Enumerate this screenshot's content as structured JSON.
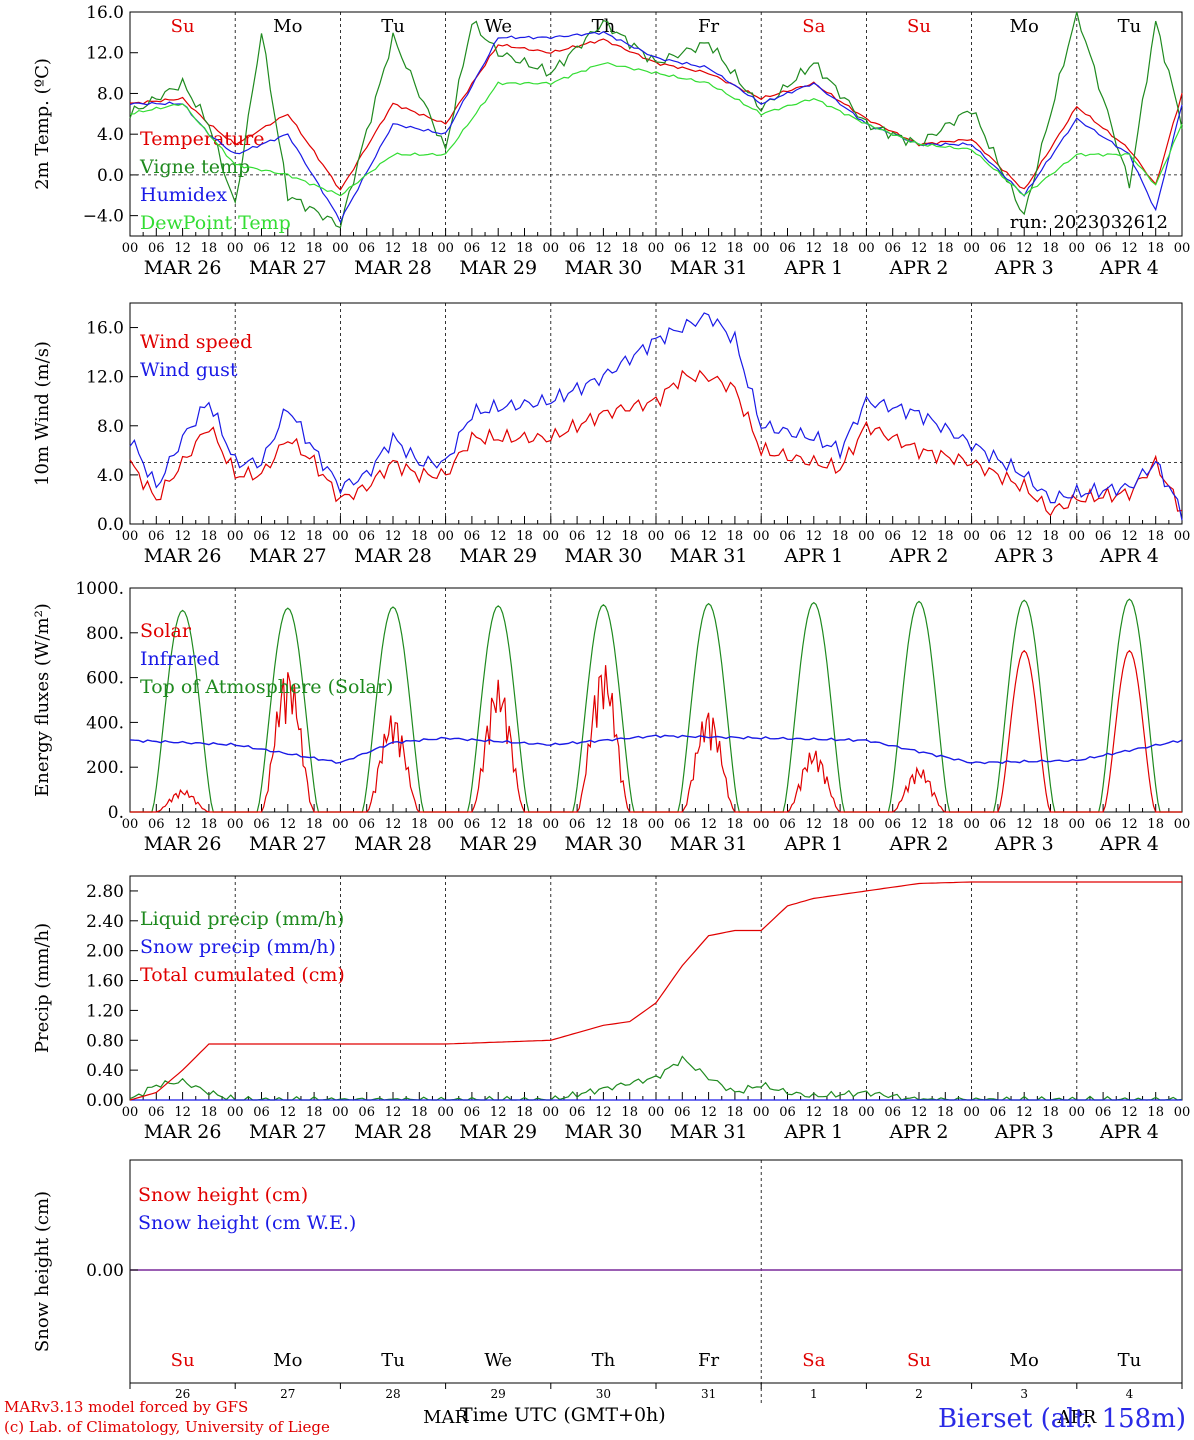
{
  "colors": {
    "red": "#e00000",
    "green": "#1f8a1f",
    "blue": "#1a1ae6",
    "lime": "#33dd33",
    "purple": "#7a2a9a"
  },
  "chart_data": [
    {
      "type": "line",
      "ylabel": "2m Temp. (ºC)",
      "ylim": [
        -6,
        16
      ],
      "yticks": [
        -4,
        0,
        4,
        8,
        12,
        16
      ],
      "ytick_labels": [
        "−4.0",
        "0.0",
        "4.0",
        "8.0",
        "12.0",
        "16.0"
      ],
      "run_label": "run: 2023032612",
      "day_labels": [
        "Su",
        "Mo",
        "Tu",
        "We",
        "Th",
        "Fr",
        "Sa",
        "Su",
        "Mo",
        "Tu"
      ],
      "day_label_colors": [
        "red",
        "black",
        "black",
        "black",
        "black",
        "black",
        "red",
        "red",
        "black",
        "black"
      ],
      "hour_ticks": [
        "00",
        "06",
        "12",
        "18"
      ],
      "date_labels": [
        "MAR 26",
        "MAR 27",
        "MAR 28",
        "MAR 29",
        "MAR 30",
        "MAR 31",
        "APR  1",
        "APR  2",
        "APR  3",
        "APR  4"
      ],
      "zero_line": 0,
      "series": [
        {
          "name": "Temperature",
          "color": "red",
          "x_hours": [
            0,
            12,
            18,
            24,
            36,
            48,
            60,
            72,
            84,
            96,
            108,
            120,
            132,
            144,
            156,
            168,
            180,
            192,
            204,
            216,
            228,
            234,
            240
          ],
          "values": [
            7,
            7.5,
            5,
            3,
            6,
            -1.5,
            7,
            5,
            12.8,
            12,
            13.3,
            11,
            10,
            7.5,
            9,
            5.5,
            3,
            3.5,
            -1.5,
            6.7,
            2.5,
            -1,
            8
          ]
        },
        {
          "name": "Vigne temp",
          "color": "green",
          "x_hours": [
            0,
            12,
            18,
            24,
            30,
            36,
            48,
            60,
            72,
            78,
            84,
            96,
            108,
            120,
            132,
            144,
            156,
            168,
            180,
            192,
            204,
            216,
            228,
            234,
            240
          ],
          "values": [
            6,
            9,
            5,
            -3,
            14,
            -2,
            -5,
            13.5,
            2.5,
            15,
            12,
            10,
            15,
            11,
            13,
            6.5,
            11,
            5,
            3,
            6.5,
            -4,
            16,
            -1,
            15,
            5
          ]
        },
        {
          "name": "Humidex",
          "color": "blue",
          "x_hours": [
            0,
            12,
            18,
            24,
            36,
            48,
            60,
            72,
            84,
            96,
            108,
            120,
            132,
            144,
            156,
            168,
            180,
            192,
            204,
            216,
            228,
            234,
            240
          ],
          "values": [
            7,
            7,
            4,
            2,
            4,
            -4.5,
            5,
            4,
            13.5,
            13.5,
            14,
            11.5,
            10.5,
            7,
            9,
            5,
            3,
            3,
            -2,
            5.5,
            2,
            -3.5,
            7
          ]
        },
        {
          "name": "DewPoint Temp",
          "color": "lime",
          "x_hours": [
            0,
            12,
            18,
            24,
            36,
            48,
            60,
            72,
            84,
            96,
            108,
            120,
            132,
            144,
            156,
            168,
            180,
            192,
            204,
            216,
            228,
            234,
            240
          ],
          "values": [
            6,
            7,
            4,
            1,
            0,
            -2,
            2,
            2,
            9,
            9,
            11,
            10,
            9,
            6,
            7.5,
            5,
            3,
            2.5,
            -2,
            2,
            2,
            -1,
            5
          ]
        }
      ]
    },
    {
      "type": "line",
      "ylabel": "10m Wind (m/s)",
      "ylim": [
        0,
        18
      ],
      "yticks": [
        0,
        4,
        8,
        12,
        16
      ],
      "ytick_labels": [
        "0.0",
        "4.0",
        "8.0",
        "12.0",
        "16.0"
      ],
      "date_labels": [
        "MAR 26",
        "MAR 27",
        "MAR 28",
        "MAR 29",
        "MAR 30",
        "MAR 31",
        "APR  1",
        "APR  2",
        "APR  3",
        "APR  4"
      ],
      "hour_ticks": [
        "00",
        "06",
        "12",
        "18"
      ],
      "zero_line": 5,
      "series": [
        {
          "name": "Wind speed",
          "color": "red",
          "x_hours": [
            0,
            6,
            12,
            18,
            24,
            30,
            36,
            42,
            48,
            54,
            60,
            66,
            72,
            78,
            84,
            96,
            108,
            120,
            126,
            132,
            138,
            144,
            156,
            162,
            168,
            180,
            192,
            204,
            210,
            216,
            228,
            234,
            240
          ],
          "values": [
            5,
            2,
            5,
            8,
            4,
            4,
            7,
            5,
            2,
            3,
            5,
            4,
            4,
            7,
            7,
            7,
            9,
            10,
            12,
            12,
            11,
            6,
            5,
            4.5,
            8,
            6,
            5,
            3,
            1,
            2,
            2.5,
            5,
            1
          ]
        },
        {
          "name": "Wind gust",
          "color": "blue",
          "x_hours": [
            0,
            6,
            12,
            18,
            24,
            30,
            36,
            42,
            48,
            54,
            60,
            66,
            72,
            78,
            84,
            96,
            108,
            120,
            126,
            132,
            138,
            144,
            156,
            162,
            168,
            180,
            192,
            204,
            210,
            216,
            228,
            234,
            240
          ],
          "values": [
            7,
            3,
            7,
            10,
            5,
            5,
            9.5,
            6,
            3,
            4,
            7,
            5,
            5,
            9,
            9.5,
            10,
            12,
            15,
            16,
            17,
            15,
            8,
            7,
            6,
            10,
            9,
            6.5,
            4,
            2,
            2.5,
            3,
            5,
            1
          ]
        }
      ]
    },
    {
      "type": "line",
      "ylabel": "Energy fluxes (W/m²)",
      "ylim": [
        0,
        1000
      ],
      "yticks": [
        0,
        200,
        400,
        600,
        800,
        1000
      ],
      "ytick_labels": [
        "0.",
        "200.",
        "400.",
        "600.",
        "800.",
        "1000."
      ],
      "date_labels": [
        "MAR 26",
        "MAR 27",
        "MAR 28",
        "MAR 29",
        "MAR 30",
        "MAR 31",
        "APR  1",
        "APR  2",
        "APR  3",
        "APR  4"
      ],
      "hour_ticks": [
        "00",
        "06",
        "12",
        "18"
      ],
      "series": [
        {
          "name": "Solar",
          "color": "red",
          "peak_per_day": [
            100,
            650,
            440,
            590,
            670,
            460,
            280,
            200,
            720,
            720
          ]
        },
        {
          "name": "Infrared",
          "color": "blue",
          "x_hours": [
            0,
            24,
            48,
            60,
            72,
            96,
            120,
            144,
            168,
            192,
            216,
            240
          ],
          "values": [
            320,
            300,
            220,
            310,
            330,
            300,
            340,
            330,
            320,
            220,
            230,
            320
          ]
        },
        {
          "name": "Top of Atmosphere (Solar)",
          "color": "green",
          "peak_per_day": [
            900,
            910,
            915,
            920,
            925,
            930,
            935,
            940,
            945,
            950
          ]
        }
      ]
    },
    {
      "type": "line",
      "ylabel": "Precip (mm/h)",
      "ylim": [
        0,
        3.0
      ],
      "yticks": [
        0,
        0.4,
        0.8,
        1.2,
        1.6,
        2.0,
        2.4,
        2.8
      ],
      "ytick_labels": [
        "0.00",
        "0.40",
        "0.80",
        "1.20",
        "1.60",
        "2.00",
        "2.40",
        "2.80"
      ],
      "date_labels": [
        "MAR 26",
        "MAR 27",
        "MAR 28",
        "MAR 29",
        "MAR 30",
        "MAR 31",
        "APR  1",
        "APR  2",
        "APR  3",
        "APR  4"
      ],
      "hour_ticks": [
        "00",
        "06",
        "12",
        "18"
      ],
      "series": [
        {
          "name": "Liquid precip (mm/h)",
          "color": "green",
          "x_hours": [
            0,
            6,
            12,
            18,
            24,
            96,
            120,
            126,
            132,
            138,
            144,
            150,
            156,
            168,
            180,
            240
          ],
          "values": [
            0,
            0.2,
            0.25,
            0.1,
            0,
            0,
            0.3,
            0.55,
            0.3,
            0.1,
            0.2,
            0.1,
            0.05,
            0.1,
            0,
            0
          ]
        },
        {
          "name": "Snow precip (mm/h)",
          "color": "blue",
          "x_hours": [
            0,
            240
          ],
          "values": [
            0,
            0
          ]
        },
        {
          "name": "Total cumulated (cm)",
          "color": "red",
          "x_hours": [
            0,
            6,
            12,
            18,
            24,
            48,
            72,
            96,
            108,
            114,
            120,
            126,
            132,
            138,
            144,
            150,
            156,
            168,
            180,
            192,
            204,
            216,
            228,
            240
          ],
          "values": [
            0,
            0.1,
            0.4,
            0.75,
            0.75,
            0.75,
            0.75,
            0.8,
            1.0,
            1.05,
            1.3,
            1.8,
            2.2,
            2.27,
            2.27,
            2.6,
            2.7,
            2.8,
            2.9,
            2.92,
            2.92,
            2.92,
            2.92,
            2.92
          ]
        }
      ]
    },
    {
      "type": "line",
      "ylabel": "Snow height (cm)",
      "ytick_labels": [
        "0.00"
      ],
      "series": [
        {
          "name": "Snow height (cm)",
          "color": "red",
          "x_hours": [
            0,
            240
          ],
          "values": [
            0,
            0
          ]
        },
        {
          "name": "Snow height (cm W.E.)",
          "color": "blue",
          "x_hours": [
            0,
            240
          ],
          "values": [
            0,
            0
          ]
        }
      ],
      "day_labels": [
        "Su",
        "Mo",
        "Tu",
        "We",
        "Th",
        "Fr",
        "Sa",
        "Su",
        "Mo",
        "Tu"
      ],
      "day_label_colors": [
        "red",
        "black",
        "black",
        "black",
        "black",
        "black",
        "red",
        "red",
        "black",
        "black"
      ],
      "day_numbers": [
        "26",
        "27",
        "28",
        "29",
        "30",
        "31",
        "1",
        "2",
        "3",
        "4"
      ],
      "month_labels": [
        "MAR",
        "APR"
      ]
    }
  ],
  "footer": {
    "xlabel": "Time UTC (GMT+0h)",
    "model_line": "MARv3.13 model forced by GFS",
    "copyright_line": "(c) Lab. of Climatology, University of Liege",
    "station": "Bierset (alt. 158m)"
  }
}
